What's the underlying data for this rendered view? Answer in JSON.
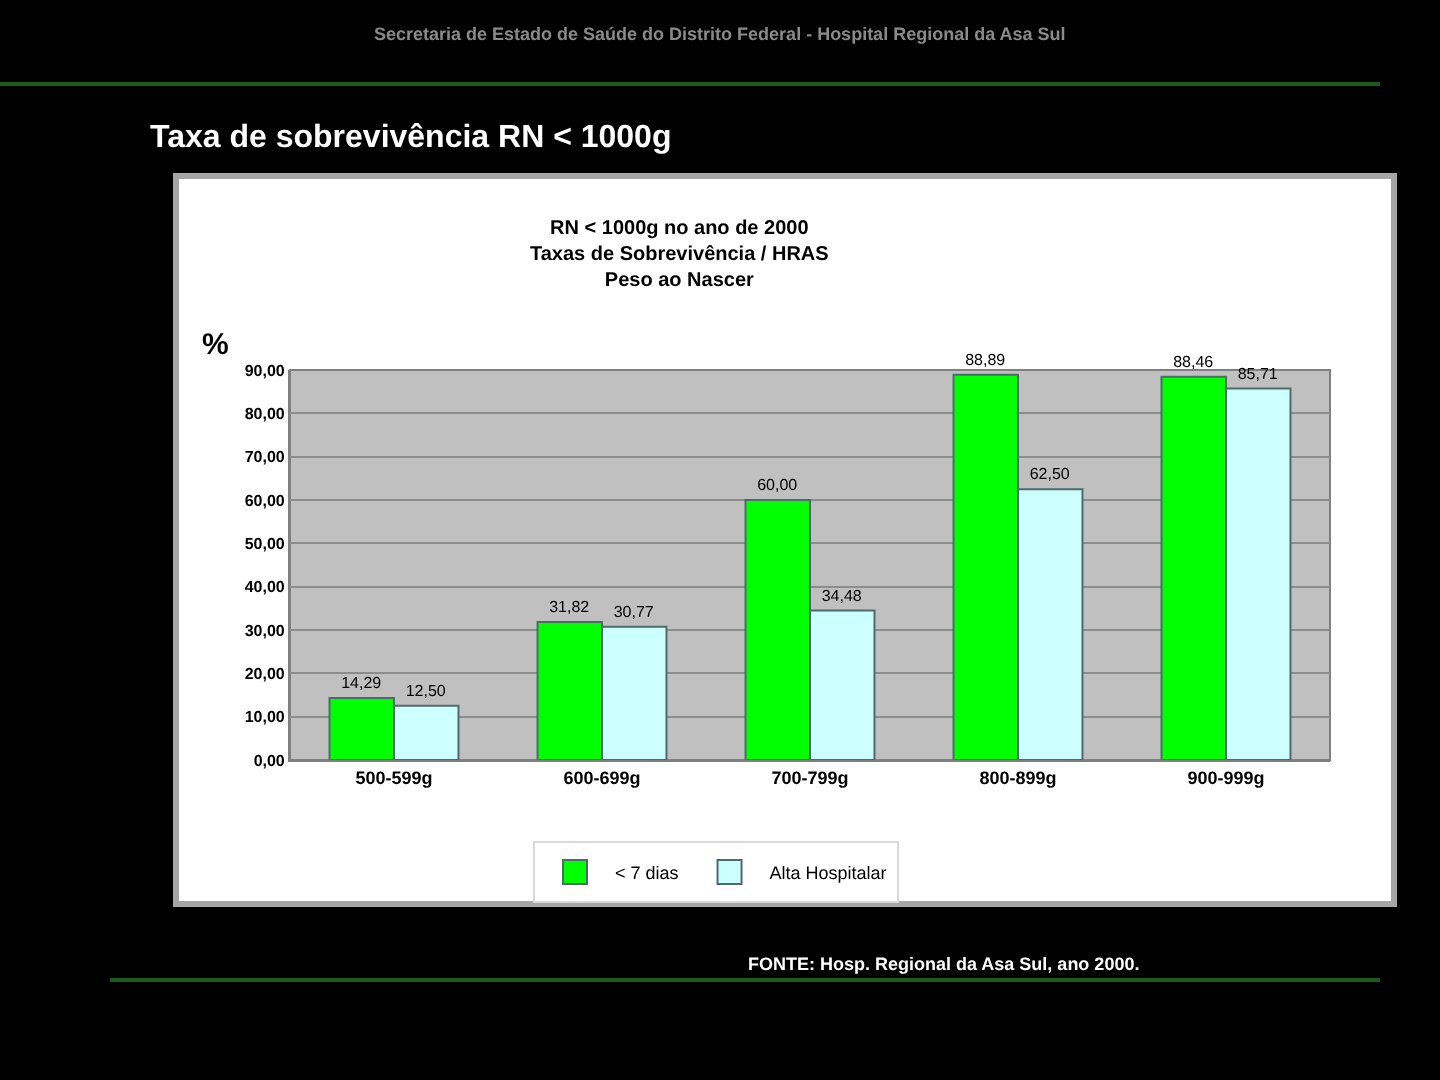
{
  "chart_data": {
    "type": "bar",
    "title": "Taxa de sobrevivência RN < 1000g",
    "subtitle": "RN < 1000g no ano de 2000\nTaxas de Sobrevivência / HRAS\nPeso ao Nascer",
    "ylabel": "%",
    "annotations": [
      "Secretaria de Estado de Saúde do Distrito Federal - Hospital Regional da Asa Sul",
      "FONTE: Hosp. Regional da Asa Sul, ano 2000."
    ],
    "categories": [
      "500-599g",
      "600-699g",
      "700-799g",
      "800-899g",
      "900-999g"
    ],
    "series": [
      {
        "name": "< 7 dias",
        "color": "#00ff00",
        "values": [
          14.29,
          31.82,
          60.0,
          88.89,
          88.46
        ],
        "value_labels": [
          "14,29",
          "31,82",
          "60,00",
          "88,89",
          "88,46"
        ]
      },
      {
        "name": "Alta Hospitalar",
        "color": "#ccffff",
        "values": [
          12.5,
          30.77,
          34.48,
          62.5,
          85.71
        ],
        "value_labels": [
          "12,50",
          "30,77",
          "34,48",
          "62,50",
          "85,71"
        ]
      }
    ],
    "ylim": [
      0,
      90
    ],
    "yticks": [
      {
        "value": 0,
        "label": "0,00"
      },
      {
        "value": 10,
        "label": "10,00"
      },
      {
        "value": 20,
        "label": "20,00"
      },
      {
        "value": 30,
        "label": "30,00"
      },
      {
        "value": 40,
        "label": "40,00"
      },
      {
        "value": 50,
        "label": "50,00"
      },
      {
        "value": 60,
        "label": "60,00"
      },
      {
        "value": 70,
        "label": "70,00"
      },
      {
        "value": 80,
        "label": "80,00"
      },
      {
        "value": 90,
        "label": "90,00"
      }
    ],
    "grid": "y",
    "legend": "bottom"
  }
}
